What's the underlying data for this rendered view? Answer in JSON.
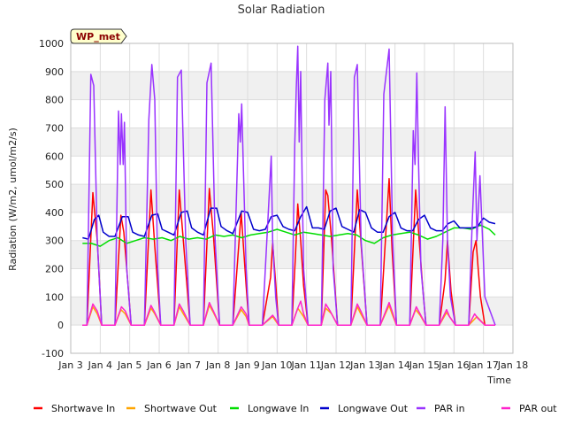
{
  "chart_data": {
    "type": "line",
    "title": "Solar Radiation",
    "xlabel": "Time",
    "ylabel": "Radiation (W/m2, umol/m2/s)",
    "badge": "WP_met",
    "xlim": [
      3,
      18
    ],
    "ylim": [
      -100,
      1000
    ],
    "x_ticks": [
      {
        "x": 3,
        "label": "Jan 3"
      },
      {
        "x": 4,
        "label": "Jan 4"
      },
      {
        "x": 5,
        "label": "Jan 5"
      },
      {
        "x": 6,
        "label": "Jan 6"
      },
      {
        "x": 7,
        "label": "Jan 7"
      },
      {
        "x": 8,
        "label": "Jan 8"
      },
      {
        "x": 9,
        "label": "Jan 9"
      },
      {
        "x": 10,
        "label": "Jan 10"
      },
      {
        "x": 11,
        "label": "Jan 11"
      },
      {
        "x": 12,
        "label": "Jan 12"
      },
      {
        "x": 13,
        "label": "Jan 13"
      },
      {
        "x": 14,
        "label": "Jan 14"
      },
      {
        "x": 15,
        "label": "Jan 15"
      },
      {
        "x": 16,
        "label": "Jan 16"
      },
      {
        "x": 17,
        "label": "Jan 17"
      },
      {
        "x": 18,
        "label": "Jan 18"
      }
    ],
    "y_ticks": [
      -100,
      0,
      100,
      200,
      300,
      400,
      500,
      600,
      700,
      800,
      900,
      1000
    ],
    "grid": true,
    "legend_position": "bottom",
    "series": [
      {
        "name": "Shortwave In",
        "color": "#ff0000",
        "x": [
          3.4,
          3.55,
          3.75,
          3.9,
          4.05,
          4.5,
          4.7,
          4.8,
          4.9,
          5.05,
          5.5,
          5.72,
          5.85,
          6.05,
          6.5,
          6.68,
          6.82,
          7.05,
          7.5,
          7.7,
          7.84,
          8.05,
          8.5,
          8.78,
          8.95,
          9.05,
          9.5,
          9.78,
          9.85,
          9.95,
          10.05,
          10.5,
          10.62,
          10.7,
          10.8,
          10.9,
          11.05,
          11.5,
          11.65,
          11.72,
          11.85,
          12.05,
          12.5,
          12.72,
          12.84,
          13.05,
          13.5,
          13.8,
          13.9,
          14.05,
          14.5,
          14.7,
          14.82,
          14.95,
          15.05,
          15.5,
          15.7,
          15.78,
          15.9,
          16.05,
          16.5,
          16.65,
          16.75,
          16.82,
          16.9,
          17.05,
          17.4
        ],
        "y": [
          0,
          0,
          470,
          300,
          0,
          0,
          390,
          330,
          200,
          0,
          0,
          480,
          280,
          0,
          0,
          480,
          300,
          0,
          0,
          485,
          320,
          0,
          0,
          400,
          140,
          0,
          0,
          170,
          290,
          150,
          0,
          0,
          240,
          430,
          300,
          140,
          0,
          0,
          480,
          460,
          300,
          0,
          0,
          480,
          300,
          0,
          0,
          520,
          270,
          0,
          0,
          480,
          300,
          120,
          0,
          0,
          160,
          300,
          120,
          0,
          0,
          260,
          300,
          200,
          100,
          0,
          0
        ]
      },
      {
        "name": "Shortwave Out",
        "color": "#ffa500",
        "x": [
          3.4,
          3.55,
          3.75,
          3.9,
          4.05,
          4.5,
          4.7,
          4.85,
          5.05,
          5.5,
          5.72,
          5.85,
          6.05,
          6.5,
          6.68,
          6.82,
          7.05,
          7.5,
          7.7,
          7.84,
          8.05,
          8.5,
          8.78,
          8.95,
          9.05,
          9.5,
          9.85,
          10.05,
          10.5,
          10.7,
          10.9,
          11.05,
          11.5,
          11.65,
          11.85,
          12.05,
          12.5,
          12.72,
          12.84,
          13.05,
          13.5,
          13.8,
          13.9,
          14.05,
          14.5,
          14.7,
          14.85,
          15.05,
          15.5,
          15.75,
          16.05,
          16.5,
          16.78,
          17.05,
          17.4
        ],
        "y": [
          0,
          0,
          65,
          40,
          0,
          0,
          55,
          40,
          0,
          0,
          60,
          40,
          0,
          0,
          65,
          40,
          0,
          0,
          70,
          45,
          0,
          0,
          55,
          30,
          0,
          0,
          30,
          0,
          0,
          60,
          30,
          0,
          0,
          60,
          40,
          0,
          0,
          65,
          40,
          0,
          0,
          70,
          40,
          0,
          0,
          55,
          35,
          0,
          0,
          45,
          0,
          0,
          30,
          0,
          0
        ]
      },
      {
        "name": "Longwave In",
        "color": "#00dd00",
        "x": [
          3.4,
          3.7,
          4.0,
          4.3,
          4.6,
          4.9,
          5.2,
          5.5,
          5.8,
          6.1,
          6.4,
          6.7,
          7.0,
          7.3,
          7.6,
          7.9,
          8.2,
          8.5,
          8.8,
          9.1,
          9.4,
          9.7,
          10.0,
          10.3,
          10.6,
          10.9,
          11.2,
          11.5,
          11.8,
          12.1,
          12.4,
          12.7,
          13.0,
          13.3,
          13.6,
          13.9,
          14.2,
          14.5,
          14.8,
          15.1,
          15.4,
          15.7,
          16.0,
          16.3,
          16.6,
          16.9,
          17.2,
          17.4
        ],
        "y": [
          290,
          290,
          280,
          300,
          310,
          290,
          300,
          310,
          305,
          310,
          300,
          315,
          305,
          310,
          305,
          320,
          315,
          320,
          310,
          320,
          325,
          330,
          340,
          330,
          320,
          330,
          325,
          320,
          315,
          320,
          325,
          320,
          300,
          290,
          310,
          320,
          325,
          330,
          320,
          305,
          315,
          330,
          345,
          345,
          340,
          355,
          340,
          320
        ]
      },
      {
        "name": "Longwave Out",
        "color": "#0000cc",
        "x": [
          3.4,
          3.6,
          3.8,
          3.95,
          4.1,
          4.3,
          4.5,
          4.75,
          4.95,
          5.1,
          5.3,
          5.5,
          5.75,
          5.95,
          6.1,
          6.3,
          6.5,
          6.75,
          6.95,
          7.1,
          7.3,
          7.5,
          7.75,
          7.95,
          8.1,
          8.3,
          8.5,
          8.8,
          9.0,
          9.2,
          9.4,
          9.6,
          9.8,
          10.0,
          10.2,
          10.4,
          10.6,
          10.8,
          11.0,
          11.2,
          11.4,
          11.6,
          11.8,
          12.0,
          12.2,
          12.4,
          12.6,
          12.8,
          13.0,
          13.2,
          13.4,
          13.6,
          13.8,
          14.0,
          14.2,
          14.4,
          14.6,
          14.8,
          15.0,
          15.2,
          15.4,
          15.6,
          15.8,
          16.0,
          16.2,
          16.4,
          16.6,
          16.8,
          17.0,
          17.2,
          17.4
        ],
        "y": [
          310,
          305,
          375,
          390,
          330,
          315,
          315,
          385,
          385,
          330,
          320,
          315,
          390,
          395,
          340,
          330,
          320,
          400,
          405,
          345,
          330,
          320,
          415,
          415,
          350,
          335,
          325,
          405,
          400,
          340,
          335,
          340,
          385,
          390,
          350,
          340,
          335,
          385,
          420,
          345,
          345,
          340,
          405,
          415,
          350,
          340,
          330,
          410,
          400,
          345,
          330,
          330,
          385,
          400,
          345,
          335,
          335,
          375,
          390,
          345,
          335,
          335,
          360,
          370,
          345,
          345,
          345,
          350,
          380,
          365,
          360
        ]
      },
      {
        "name": "PAR in",
        "color": "#9933ff",
        "x": [
          3.4,
          3.55,
          3.68,
          3.78,
          3.9,
          4.05,
          4.5,
          4.62,
          4.68,
          4.72,
          4.78,
          4.82,
          4.9,
          5.05,
          5.5,
          5.65,
          5.75,
          5.85,
          5.95,
          6.05,
          6.5,
          6.62,
          6.75,
          6.9,
          7.05,
          7.5,
          7.62,
          7.76,
          7.9,
          8.05,
          8.5,
          8.7,
          8.75,
          8.8,
          8.86,
          8.95,
          9.05,
          9.5,
          9.8,
          9.85,
          9.95,
          10.05,
          10.5,
          10.6,
          10.65,
          10.7,
          10.75,
          10.8,
          10.85,
          10.9,
          11.05,
          11.5,
          11.62,
          11.72,
          11.76,
          11.82,
          11.9,
          12.05,
          12.5,
          12.62,
          12.72,
          12.85,
          13.05,
          13.5,
          13.62,
          13.8,
          13.92,
          14.05,
          14.5,
          14.62,
          14.68,
          14.74,
          14.8,
          14.88,
          15.05,
          15.5,
          15.62,
          15.7,
          15.78,
          15.88,
          16.05,
          16.5,
          16.62,
          16.72,
          16.78,
          16.88,
          17.05,
          17.4
        ],
        "y": [
          0,
          0,
          890,
          850,
          300,
          0,
          0,
          760,
          570,
          750,
          570,
          720,
          200,
          0,
          0,
          730,
          925,
          800,
          200,
          0,
          0,
          880,
          905,
          300,
          0,
          0,
          860,
          930,
          300,
          0,
          0,
          750,
          650,
          785,
          545,
          200,
          0,
          0,
          600,
          300,
          100,
          0,
          0,
          640,
          840,
          990,
          650,
          900,
          500,
          200,
          0,
          0,
          800,
          930,
          710,
          900,
          200,
          0,
          0,
          880,
          925,
          300,
          0,
          0,
          820,
          980,
          300,
          0,
          0,
          690,
          570,
          895,
          570,
          200,
          0,
          0,
          300,
          775,
          300,
          100,
          0,
          0,
          370,
          615,
          300,
          530,
          100,
          0
        ]
      },
      {
        "name": "PAR out",
        "color": "#ff22cc",
        "x": [
          3.4,
          3.55,
          3.75,
          3.9,
          4.05,
          4.5,
          4.72,
          4.85,
          5.05,
          5.5,
          5.72,
          5.85,
          6.05,
          6.5,
          6.68,
          6.82,
          7.05,
          7.5,
          7.7,
          7.84,
          8.05,
          8.5,
          8.78,
          8.95,
          9.05,
          9.5,
          9.85,
          9.95,
          10.05,
          10.5,
          10.7,
          10.8,
          10.9,
          11.05,
          11.5,
          11.65,
          11.8,
          12.05,
          12.5,
          12.72,
          12.84,
          13.05,
          13.5,
          13.8,
          13.9,
          14.05,
          14.5,
          14.72,
          14.85,
          15.05,
          15.5,
          15.75,
          15.85,
          16.05,
          16.5,
          16.7,
          16.8,
          17.05,
          17.4
        ],
        "y": [
          0,
          0,
          75,
          50,
          0,
          0,
          65,
          50,
          0,
          0,
          70,
          45,
          0,
          0,
          75,
          50,
          0,
          0,
          80,
          50,
          0,
          0,
          65,
          40,
          0,
          0,
          35,
          20,
          0,
          0,
          60,
          85,
          40,
          0,
          0,
          75,
          50,
          0,
          0,
          75,
          50,
          0,
          0,
          80,
          50,
          0,
          0,
          65,
          40,
          0,
          0,
          55,
          30,
          0,
          0,
          40,
          25,
          0,
          0
        ]
      }
    ]
  }
}
